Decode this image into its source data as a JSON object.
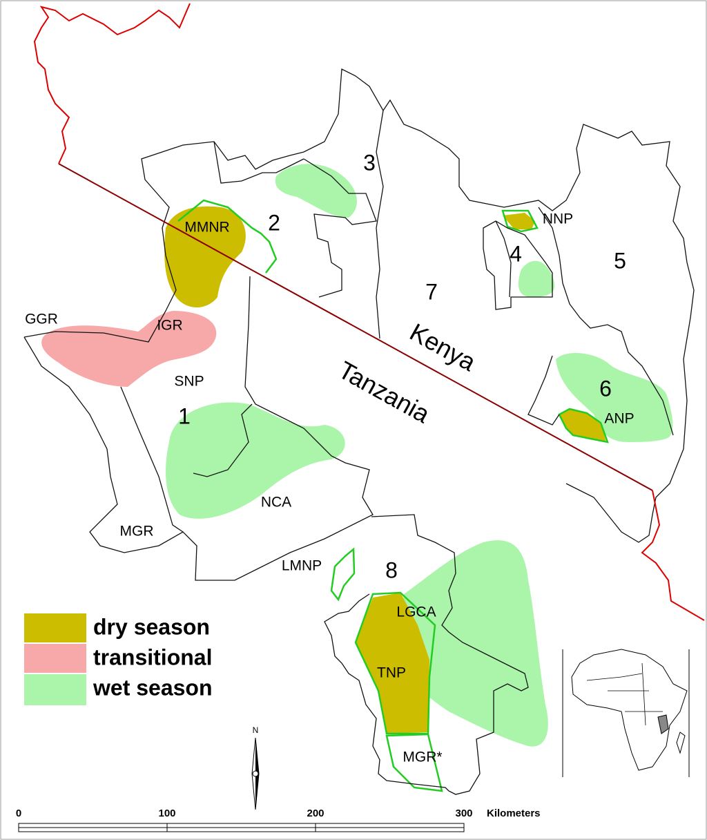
{
  "regions": {
    "r1": "1",
    "r2": "2",
    "r3": "3",
    "r4": "4",
    "r5": "5",
    "r6": "6",
    "r7": "7",
    "r8": "8"
  },
  "areas": {
    "mmnr": "MMNR",
    "nnp": "NNP",
    "ggr": "GGR",
    "igr": "IGR",
    "snp": "SNP",
    "nca": "NCA",
    "mgr": "MGR",
    "anp": "ANP",
    "lmnp": "LMNP",
    "lgca": "LGCA",
    "tnp": "TNP",
    "mgr_star": "MGR*"
  },
  "countries": {
    "kenya": "Kenya",
    "tanzania": "Tanzania"
  },
  "legend": [
    "dry season",
    "transitional",
    "wet season"
  ],
  "north": "N",
  "scale_bar": {
    "labels": [
      0,
      100,
      200,
      300
    ],
    "unit": "Kilometers"
  }
}
